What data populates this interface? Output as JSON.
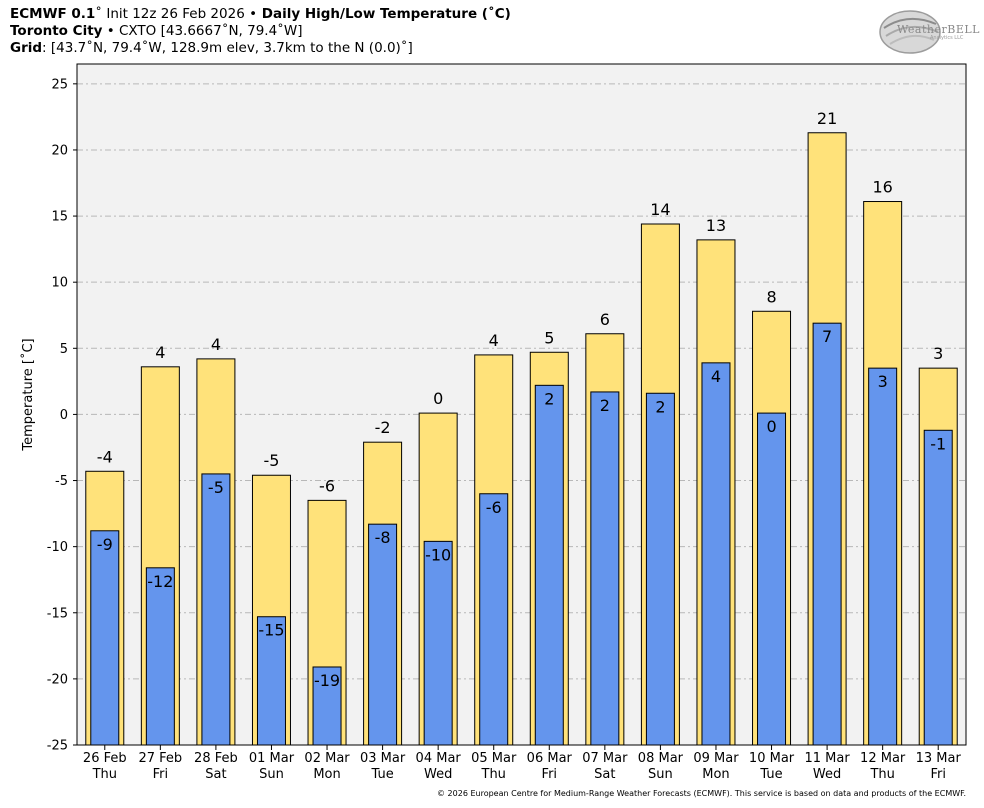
{
  "header": {
    "line1": {
      "model": "ECMWF 0.1",
      "deg": "˚",
      "init": " Init 12z 26 Feb 2026 ",
      "bullet": "•",
      "title": " Daily High/Low Temperature (˚C)"
    },
    "line2": {
      "station": "Toronto City",
      "rest": " • CXTO [43.6667˚N, 79.4˚W]"
    },
    "line3": {
      "label": "Grid",
      "rest": ": [43.7˚N, 79.4˚W, 128.9m elev, 3.7km to the N (0.0)˚]"
    }
  },
  "logo": {
    "text": "WeatherBELL",
    "sub": "Analytics LLC"
  },
  "footer": "© 2026 European Centre for Medium-Range Weather Forecasts (ECMWF). This service is based on data and products of the ECMWF.",
  "colors": {
    "high": "#ffe27a",
    "low": "#6495ed",
    "plot_bg": "#f2f2f2",
    "grid": "#b8b8b8"
  },
  "chart_data": {
    "type": "bar",
    "title": "Daily High/Low Temperature (˚C)",
    "ylabel": "Temperature [˚C]",
    "xlabel": "",
    "ylim": [
      -25,
      26.5
    ],
    "yticks": [
      25,
      20,
      15,
      10,
      5,
      0,
      -5,
      -10,
      -15,
      -20,
      -25
    ],
    "grid": true,
    "categories": [
      {
        "date": "26 Feb",
        "day": "Thu"
      },
      {
        "date": "27 Feb",
        "day": "Fri"
      },
      {
        "date": "28 Feb",
        "day": "Sat"
      },
      {
        "date": "01 Mar",
        "day": "Sun"
      },
      {
        "date": "02 Mar",
        "day": "Mon"
      },
      {
        "date": "03 Mar",
        "day": "Tue"
      },
      {
        "date": "04 Mar",
        "day": "Wed"
      },
      {
        "date": "05 Mar",
        "day": "Thu"
      },
      {
        "date": "06 Mar",
        "day": "Fri"
      },
      {
        "date": "07 Mar",
        "day": "Sat"
      },
      {
        "date": "08 Mar",
        "day": "Sun"
      },
      {
        "date": "09 Mar",
        "day": "Mon"
      },
      {
        "date": "10 Mar",
        "day": "Tue"
      },
      {
        "date": "11 Mar",
        "day": "Wed"
      },
      {
        "date": "12 Mar",
        "day": "Thu"
      },
      {
        "date": "13 Mar",
        "day": "Fri"
      }
    ],
    "series": [
      {
        "name": "High",
        "values": [
          -4.3,
          3.6,
          4.2,
          -4.6,
          -6.5,
          -2.1,
          0.1,
          4.5,
          4.7,
          6.1,
          14.4,
          13.2,
          7.8,
          21.3,
          16.1,
          3.5
        ],
        "labels": [
          "-4",
          "4",
          "4",
          "-5",
          "-6",
          "-2",
          "0",
          "4",
          "5",
          "6",
          "14",
          "13",
          "8",
          "21",
          "16",
          "3"
        ]
      },
      {
        "name": "Low",
        "values": [
          -8.8,
          -11.6,
          -4.5,
          -15.3,
          -19.1,
          -8.3,
          -9.6,
          -6.0,
          2.2,
          1.7,
          1.6,
          3.9,
          0.1,
          6.9,
          3.5,
          -1.2
        ],
        "labels": [
          "-9",
          "-12",
          "-5",
          "-15",
          "-19",
          "-8",
          "-10",
          "-6",
          "2",
          "2",
          "2",
          "4",
          "0",
          "7",
          "3",
          "-1"
        ]
      }
    ]
  }
}
